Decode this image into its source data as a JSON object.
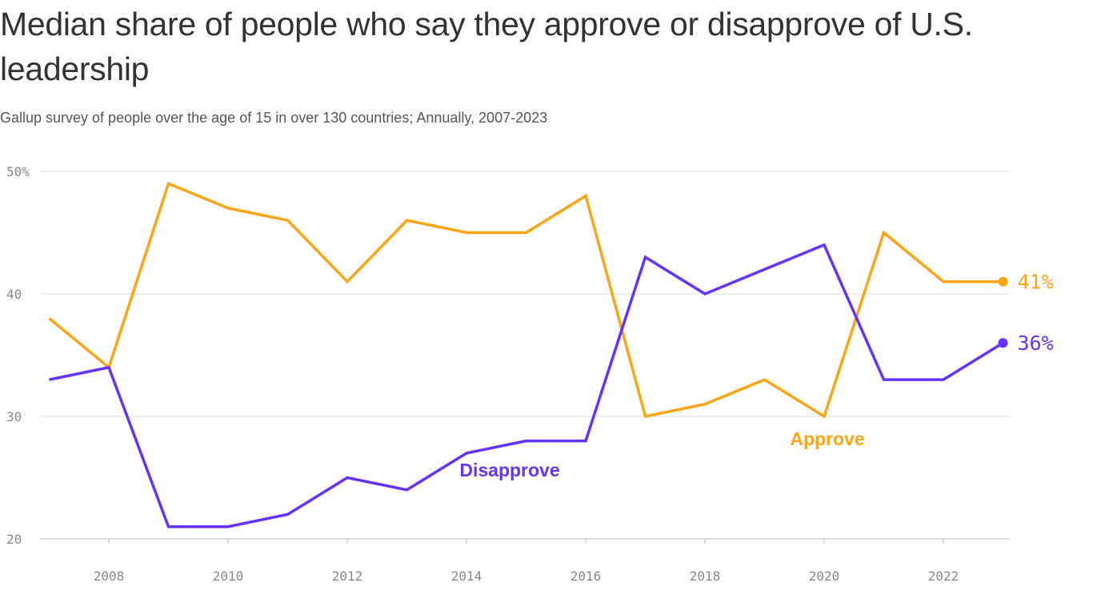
{
  "title": "Median share of people who say they approve or disapprove of U.S. leadership",
  "subtitle": "Gallup survey of people over the age of 15 in over 130 countries; Annually, 2007-2023",
  "chart_data": {
    "type": "line",
    "title": "Median share of people who say they approve or disapprove of U.S. leadership",
    "x": [
      2007,
      2008,
      2009,
      2010,
      2011,
      2012,
      2013,
      2014,
      2015,
      2016,
      2017,
      2018,
      2019,
      2020,
      2021,
      2022,
      2023
    ],
    "xlim": [
      2007,
      2023
    ],
    "ylim": [
      20,
      50
    ],
    "x_ticks": [
      2008,
      2010,
      2012,
      2014,
      2016,
      2018,
      2020,
      2022
    ],
    "y_ticks": [
      {
        "value": 20,
        "label": "20"
      },
      {
        "value": 30,
        "label": "30"
      },
      {
        "value": 40,
        "label": "40"
      },
      {
        "value": 50,
        "label": "50%"
      }
    ],
    "grid": "horizontal",
    "series": [
      {
        "name": "Approve",
        "color": "#ffa515",
        "values": [
          38,
          34,
          49,
          47,
          46,
          41,
          46,
          45,
          45,
          48,
          30,
          31,
          33,
          30,
          45,
          41,
          41
        ],
        "end_label": "41%"
      },
      {
        "name": "Disapprove",
        "color": "#6533ff",
        "values": [
          33,
          34,
          21,
          21,
          22,
          25,
          24,
          27,
          28,
          28,
          43,
          40,
          42,
          44,
          33,
          33,
          36
        ],
        "end_label": "36%"
      }
    ]
  }
}
